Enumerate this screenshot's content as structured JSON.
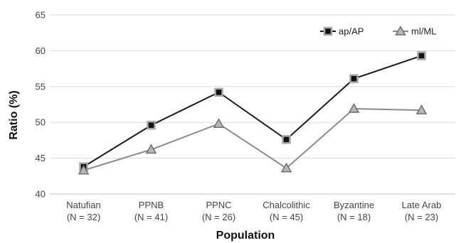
{
  "chart_data": {
    "type": "line",
    "title": "",
    "xlabel": "Population",
    "ylabel": "Ratio (%)",
    "ylim": [
      40,
      65
    ],
    "yticks": [
      40,
      45,
      50,
      55,
      60,
      65
    ],
    "grid": "horizontal",
    "legend_position": "top-right",
    "categories": [
      [
        "Natufian",
        "(N = 32)"
      ],
      [
        "PPNB",
        "(N = 41)"
      ],
      [
        "PPNC",
        "(N = 26)"
      ],
      [
        "Chalcolithic",
        "(N = 45)"
      ],
      [
        "Byzantine",
        "(N = 18)"
      ],
      [
        "Late Arab",
        "(N = 23)"
      ]
    ],
    "series": [
      {
        "name": "ap/AP",
        "values": [
          43.8,
          49.6,
          54.2,
          47.6,
          56.1,
          59.3
        ],
        "line_color": "#1a1a1a",
        "marker": "square",
        "marker_fill": "#111111",
        "marker_border": "#a8a8a8"
      },
      {
        "name": "ml/ML",
        "values": [
          43.3,
          46.2,
          49.8,
          43.6,
          51.9,
          51.7
        ],
        "line_color": "#8c8c8c",
        "marker": "triangle",
        "marker_fill": "#b8b8b8",
        "marker_border": "#6e6e6e"
      }
    ],
    "colors": {
      "grid": "#d9d9d9",
      "axis": "#bfbfbf"
    }
  }
}
